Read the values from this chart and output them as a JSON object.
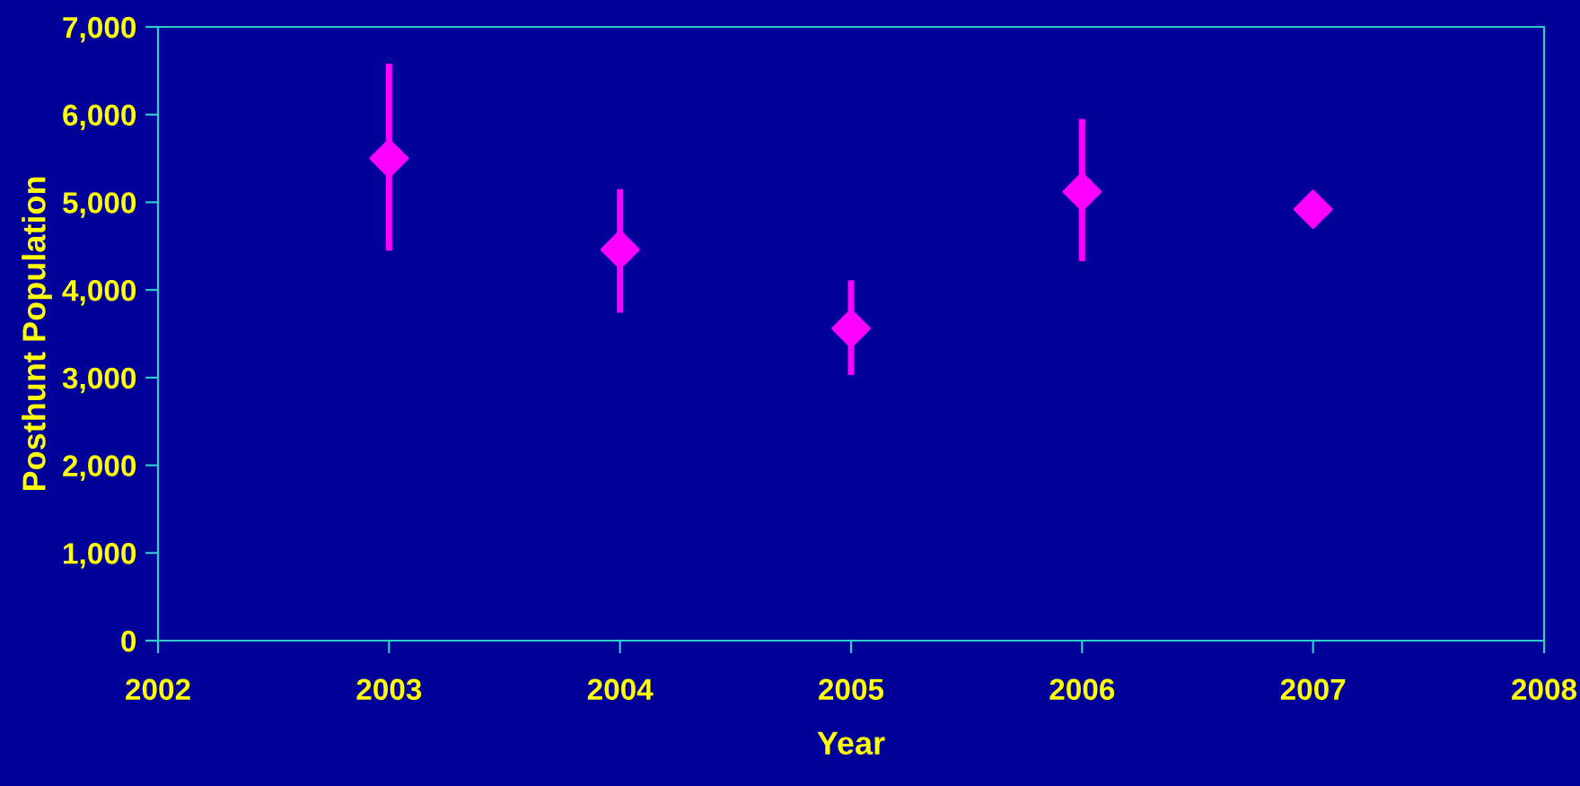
{
  "chart_data": {
    "type": "scatter",
    "xlabel": "Year",
    "ylabel": "Posthunt Population",
    "x": [
      2003,
      2004,
      2005,
      2006,
      2007
    ],
    "series": [
      {
        "color": "#ff00ff",
        "values": [
          5500,
          4460,
          3560,
          5120,
          4920
        ],
        "errors": [
          [
            4450,
            6580
          ],
          [
            3740,
            5150
          ],
          [
            3030,
            4110
          ],
          [
            4330,
            5950
          ],
          null
        ]
      }
    ],
    "marker": "diamond",
    "xlim": [
      2002,
      2008
    ],
    "xticks": [
      2002,
      2003,
      2004,
      2005,
      2006,
      2007,
      2008
    ],
    "ylim": [
      0,
      7000
    ],
    "yticks": [
      {
        "value": 0,
        "label": "0"
      },
      {
        "value": 1000,
        "label": "1,000"
      },
      {
        "value": 2000,
        "label": "2,000"
      },
      {
        "value": 3000,
        "label": "3,000"
      },
      {
        "value": 4000,
        "label": "4,000"
      },
      {
        "value": 5000,
        "label": "5,000"
      },
      {
        "value": 6000,
        "label": "6,000"
      },
      {
        "value": 7000,
        "label": "7,000"
      }
    ],
    "grid": false
  }
}
